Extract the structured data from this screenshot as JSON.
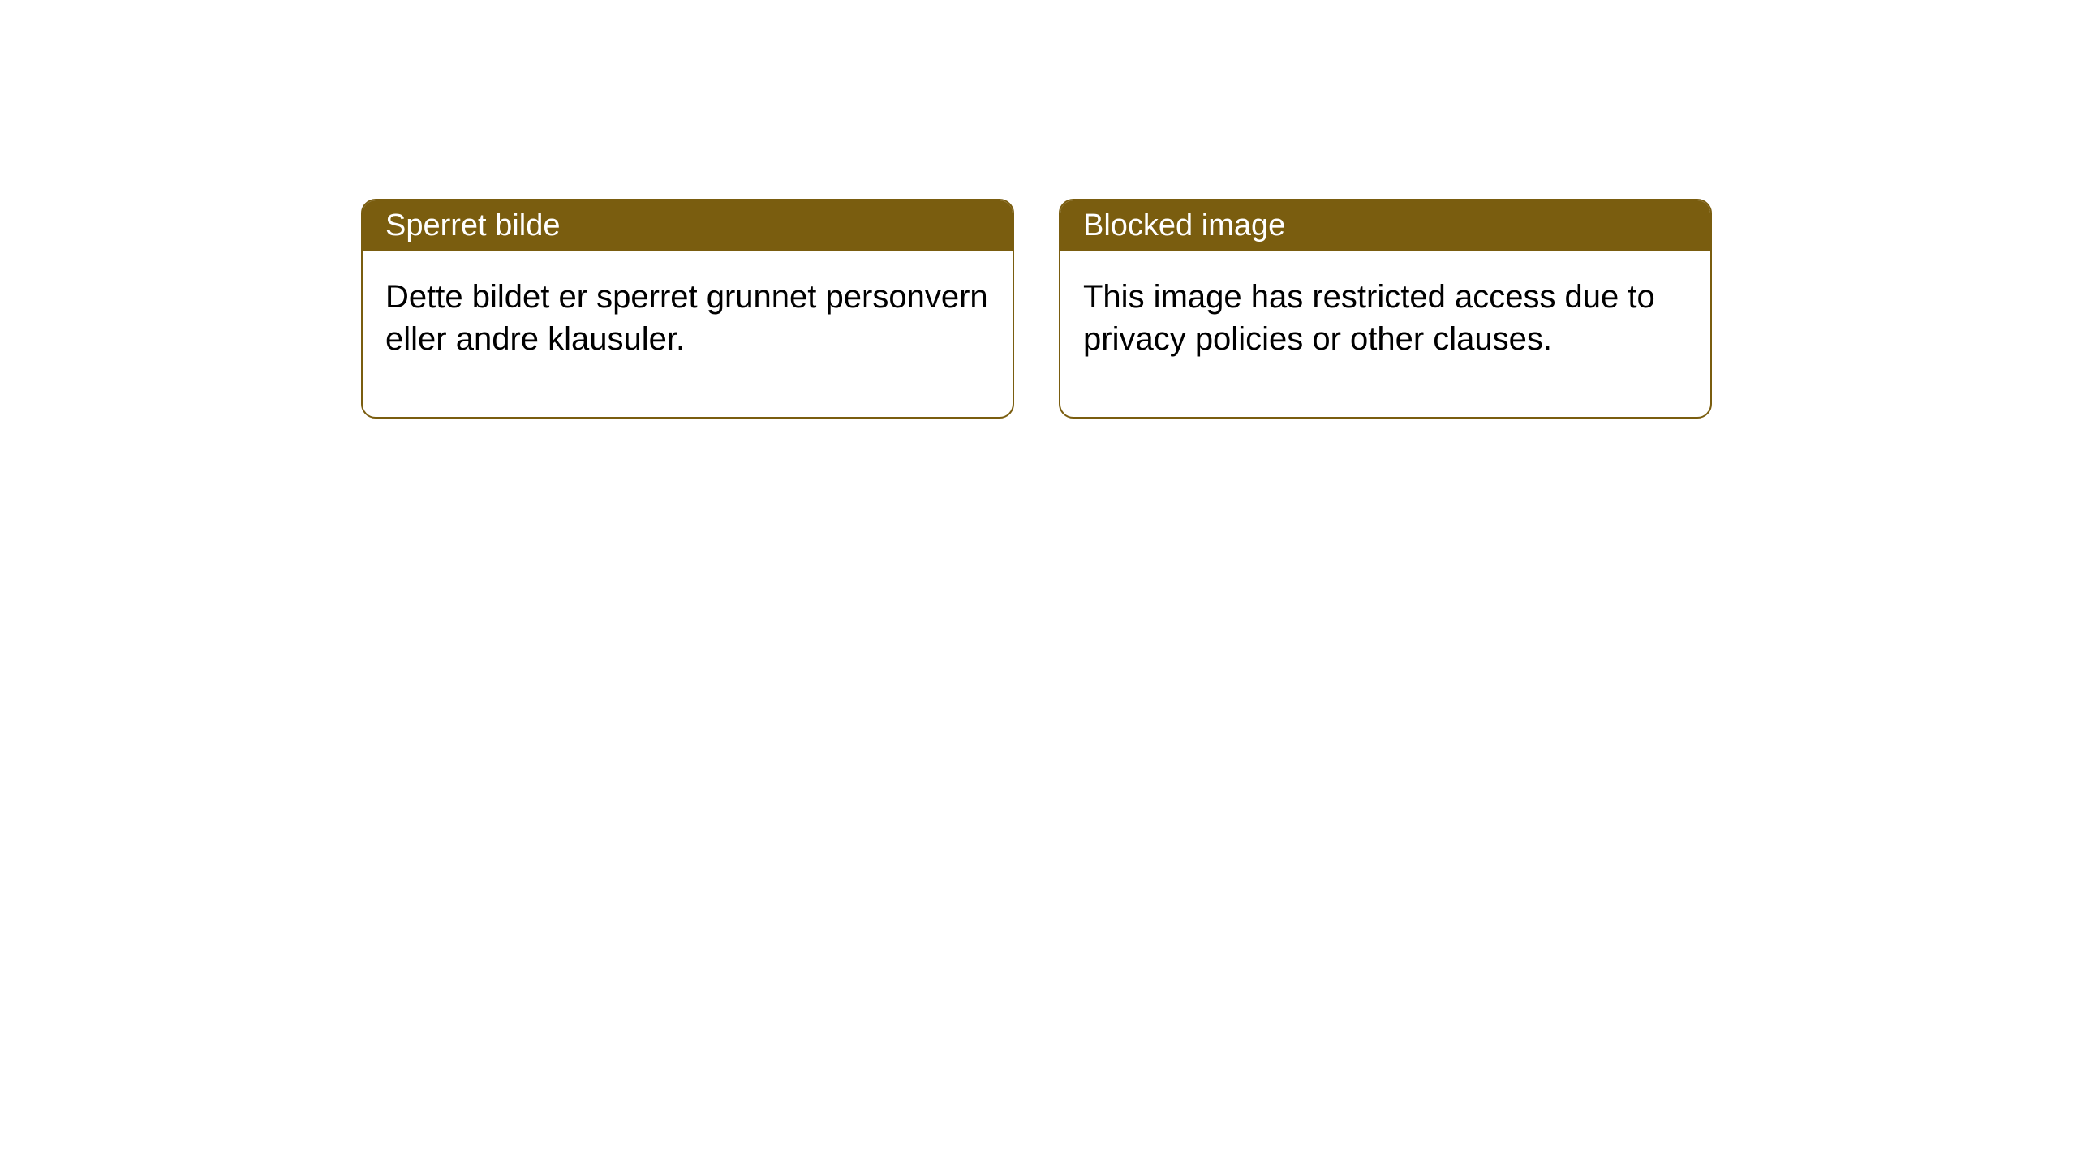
{
  "layout": {
    "background_color": "#ffffff",
    "card_border_color": "#7a5d0f",
    "card_header_bg": "#7a5d0f",
    "card_header_text_color": "#ffffff",
    "card_body_text_color": "#000000",
    "card_border_radius": 18,
    "header_font_size": 38,
    "body_font_size": 40
  },
  "cards": {
    "left": {
      "title": "Sperret bilde",
      "body": "Dette bildet er sperret grunnet personvern eller andre klausuler."
    },
    "right": {
      "title": "Blocked image",
      "body": "This image has restricted access due to privacy policies or other clauses."
    }
  }
}
